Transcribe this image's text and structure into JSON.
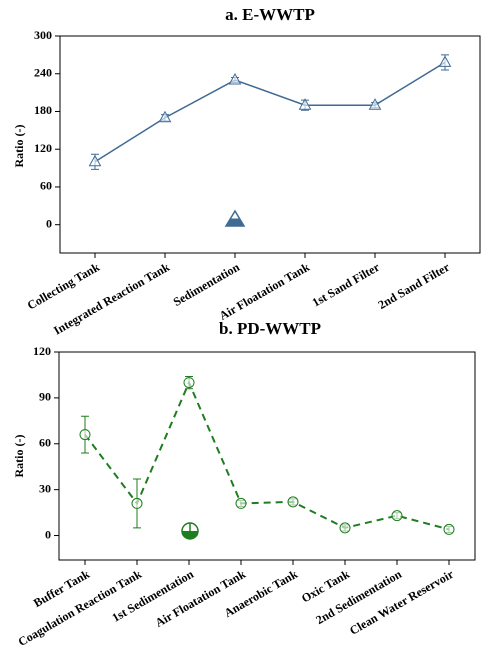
{
  "chart_data": [
    {
      "type": "line",
      "title": "a. E-WWTP",
      "y_label": "Ratio (-)",
      "categories": [
        "Collecting Tank",
        "Integrated Reaction Tank",
        "Sedimentation",
        "Air Floatation Tank",
        "1st Sand Filter",
        "2nd Sand Filter"
      ],
      "series": [
        {
          "color": "#3f6a94",
          "marker": "triangle",
          "line_style": "solid",
          "values": [
            100,
            170,
            230,
            190,
            190,
            258
          ],
          "errors": [
            12,
            5,
            4,
            8,
            4,
            12
          ]
        }
      ],
      "ylim": [
        -45,
        300
      ],
      "yticks": [
        0,
        60,
        120,
        180,
        240,
        300
      ]
    },
    {
      "type": "line",
      "title": "b. PD-WWTP",
      "y_label": "Ratio (-)",
      "categories": [
        "Buffer Tank",
        "Coagulation Reaction Tank",
        "1st Sedimentation",
        "Air Floatation Tank",
        "Anaerobic Tank",
        "Oxic Tank",
        "2nd Sedimentation",
        "Clean Water Reservoir"
      ],
      "series": [
        {
          "color": "#1e7d1e",
          "marker": "circle",
          "line_style": "dashed",
          "values": [
            66,
            21,
            100,
            21,
            22,
            5,
            13,
            4
          ],
          "errors": [
            12,
            16,
            4,
            2,
            2,
            2,
            2,
            2
          ]
        }
      ],
      "ylim": [
        -16,
        120
      ],
      "yticks": [
        0,
        30,
        60,
        90,
        120
      ]
    }
  ]
}
